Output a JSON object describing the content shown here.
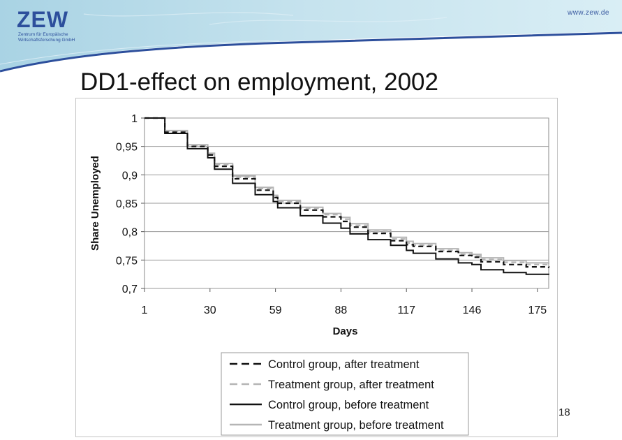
{
  "header": {
    "logo_text": "ZEW",
    "logo_subtitle": "Zentrum für Europäische Wirtschaftsforschung GmbH",
    "url": "www.zew.de",
    "brand_color": "#2d4f9c",
    "banner_color": "#b9dbe8"
  },
  "slide": {
    "title": "DD1-effect on employment, 2002",
    "page_number": "18"
  },
  "chart_data": {
    "type": "line",
    "title": "",
    "xlabel": "Days",
    "ylabel": "Share Unemployed",
    "xlim": [
      1,
      180
    ],
    "ylim": [
      0.7,
      1.0
    ],
    "x_ticks": [
      "1",
      "30",
      "59",
      "88",
      "117",
      "146",
      "175"
    ],
    "y_ticks": [
      "1",
      "0,95",
      "0,9",
      "0,85",
      "0,8",
      "0,75",
      "0,7"
    ],
    "grid": true,
    "legend_position": "bottom",
    "x": [
      1,
      10,
      20,
      29,
      32,
      40,
      50,
      58,
      60,
      70,
      80,
      88,
      92,
      100,
      110,
      117,
      120,
      130,
      140,
      146,
      150,
      160,
      170,
      180
    ],
    "series": [
      {
        "name": "Control group, after treatment",
        "style": "dashed",
        "color": "#111111",
        "values": [
          1.0,
          0.975,
          0.95,
          0.935,
          0.915,
          0.893,
          0.873,
          0.86,
          0.85,
          0.838,
          0.826,
          0.818,
          0.808,
          0.797,
          0.784,
          0.777,
          0.774,
          0.765,
          0.758,
          0.755,
          0.747,
          0.742,
          0.738,
          0.736
        ]
      },
      {
        "name": "Treatment group, after treatment",
        "style": "dashed",
        "color": "#b5b5b5",
        "values": [
          1.0,
          0.977,
          0.952,
          0.936,
          0.918,
          0.896,
          0.876,
          0.862,
          0.853,
          0.841,
          0.83,
          0.822,
          0.811,
          0.8,
          0.787,
          0.78,
          0.776,
          0.767,
          0.76,
          0.757,
          0.751,
          0.746,
          0.742,
          0.74
        ]
      },
      {
        "name": "Control group, before treatment",
        "style": "solid",
        "color": "#111111",
        "values": [
          1.0,
          0.973,
          0.946,
          0.93,
          0.91,
          0.885,
          0.865,
          0.853,
          0.842,
          0.828,
          0.815,
          0.806,
          0.796,
          0.786,
          0.776,
          0.767,
          0.762,
          0.752,
          0.745,
          0.742,
          0.733,
          0.728,
          0.725,
          0.724
        ]
      },
      {
        "name": "Treatment group, before treatment",
        "style": "solid",
        "color": "#b5b5b5",
        "values": [
          1.0,
          0.978,
          0.953,
          0.938,
          0.92,
          0.898,
          0.878,
          0.864,
          0.855,
          0.843,
          0.832,
          0.825,
          0.814,
          0.803,
          0.79,
          0.783,
          0.779,
          0.77,
          0.763,
          0.76,
          0.754,
          0.749,
          0.745,
          0.743
        ]
      }
    ]
  }
}
